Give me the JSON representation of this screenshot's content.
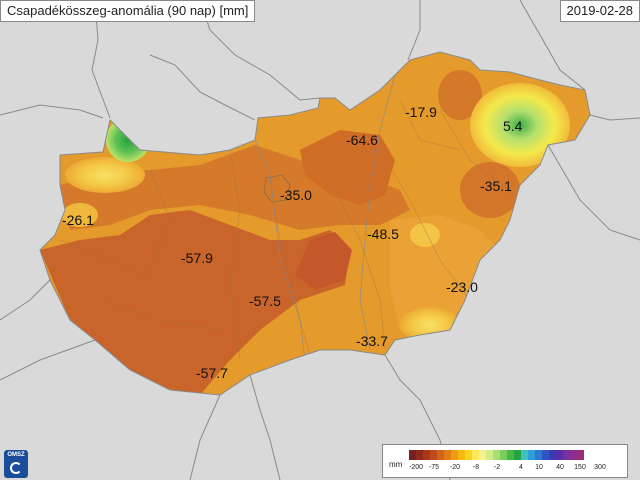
{
  "title": "Csapadékösszeg-anomália (90 nap) [mm]",
  "date": "2019-02-28",
  "logo_text": "OMSZ",
  "legend": {
    "unit": "mm",
    "tick_labels": [
      "-200",
      "-75",
      "-20",
      "-8",
      "-2",
      "4",
      "10",
      "40",
      "150",
      "300"
    ],
    "colors": [
      "#7a1f1f",
      "#8f2a1c",
      "#a8381a",
      "#c04a19",
      "#d3621a",
      "#e27c16",
      "#ee9b12",
      "#f6b90f",
      "#fbd322",
      "#fbe85a",
      "#f3f28c",
      "#d3ec8a",
      "#a8df72",
      "#78cd5c",
      "#45b947",
      "#27a340",
      "#41c0c0",
      "#2e9ed7",
      "#2c79cf",
      "#2e56c2",
      "#3b3cb0",
      "#5a2ea6",
      "#76309f",
      "#8b2f8f",
      "#9c2b78"
    ]
  },
  "anomaly_labels": [
    {
      "id": "label-sopron-area",
      "value": "-26.1"
    },
    {
      "id": "label-west-center",
      "value": "-57.9"
    },
    {
      "id": "label-budapest",
      "value": "-35.0"
    },
    {
      "id": "label-north-center",
      "value": "-64.6"
    },
    {
      "id": "label-northeast",
      "value": "-17.9"
    },
    {
      "id": "label-nyiregyhaza",
      "value": "5.4"
    },
    {
      "id": "label-debrecen",
      "value": "-35.1"
    },
    {
      "id": "label-alfold",
      "value": "-48.5"
    },
    {
      "id": "label-bekes",
      "value": "-23.0"
    },
    {
      "id": "label-center-south",
      "value": "-57.5"
    },
    {
      "id": "label-szeged",
      "value": "-33.7"
    },
    {
      "id": "label-pecs",
      "value": "-57.7"
    }
  ],
  "colors": {
    "background": "#d9d9d9",
    "outside_land": "#d9d9d9",
    "orange_main": "#e59a2c",
    "orange_dark": "#cf6d26",
    "orange_light": "#f0b43a",
    "yellow": "#f6d64a",
    "green": "#48b84a",
    "border_line": "#8a8a8a"
  }
}
